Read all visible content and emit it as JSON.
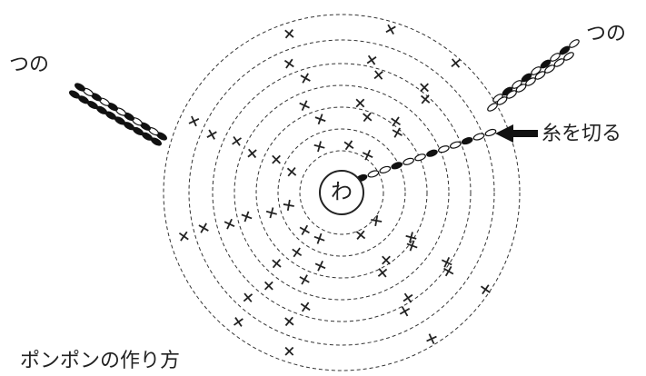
{
  "labels": {
    "center": "わ",
    "horn_left": "つの",
    "horn_right": "つの",
    "cut": "糸を切る",
    "caption": "ポンポンの作り方"
  }
}
